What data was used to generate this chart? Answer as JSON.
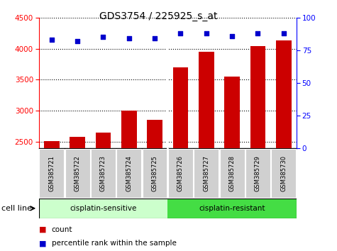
{
  "title": "GDS3754 / 225925_s_at",
  "samples": [
    "GSM385721",
    "GSM385722",
    "GSM385723",
    "GSM385724",
    "GSM385725",
    "GSM385726",
    "GSM385727",
    "GSM385728",
    "GSM385729",
    "GSM385730"
  ],
  "counts": [
    2510,
    2580,
    2650,
    3000,
    2860,
    3700,
    3950,
    3550,
    4040,
    4130
  ],
  "percentile_ranks": [
    83,
    82,
    85,
    84,
    84,
    88,
    88,
    86,
    88,
    88
  ],
  "bar_color": "#cc0000",
  "dot_color": "#0000cc",
  "ylim_left": [
    2400,
    4500
  ],
  "ylim_right": [
    0,
    100
  ],
  "yticks_left": [
    2500,
    3000,
    3500,
    4000,
    4500
  ],
  "yticks_right": [
    0,
    25,
    50,
    75,
    100
  ],
  "sensitive_color": "#ccffcc",
  "resistant_color": "#44dd44",
  "label_bg_color": "#d0d0d0",
  "plot_bg": "#ffffff"
}
